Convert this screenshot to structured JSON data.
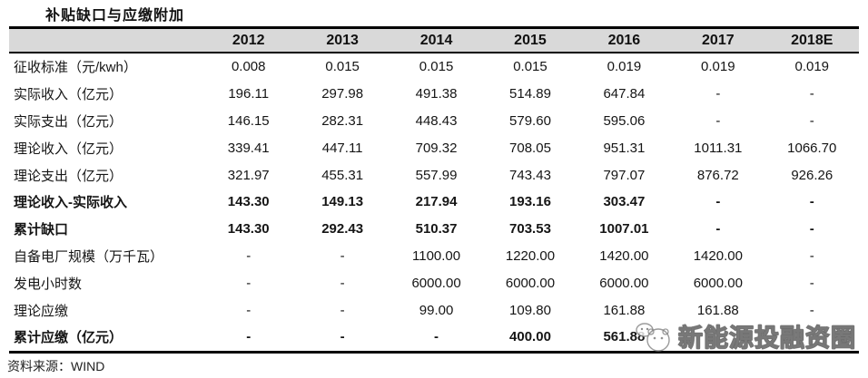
{
  "title": "补贴缺口与应缴附加",
  "source": "资料来源：WIND",
  "watermark": {
    "text": "新能源投融资圈",
    "logo": "panda-bubble-logo"
  },
  "colors": {
    "header_bg": "#d9d9d9",
    "border": "#000000",
    "text": "#151515",
    "watermark_outline": "#646464"
  },
  "chart_data": {
    "type": "table",
    "title": "补贴缺口与应缴附加",
    "columns": [
      "",
      "2012",
      "2013",
      "2014",
      "2015",
      "2016",
      "2017",
      "2018E"
    ],
    "rows": [
      {
        "label": "征收标准（元/kwh）",
        "bold": false,
        "values": [
          "0.008",
          "0.015",
          "0.015",
          "0.015",
          "0.019",
          "0.019",
          "0.019"
        ]
      },
      {
        "label": "实际收入（亿元）",
        "bold": false,
        "values": [
          "196.11",
          "297.98",
          "491.38",
          "514.89",
          "647.84",
          "-",
          "-"
        ]
      },
      {
        "label": "实际支出（亿元）",
        "bold": false,
        "values": [
          "146.15",
          "282.31",
          "448.43",
          "579.60",
          "595.06",
          "-",
          "-"
        ]
      },
      {
        "label": "理论收入（亿元）",
        "bold": false,
        "values": [
          "339.41",
          "447.11",
          "709.32",
          "708.05",
          "951.31",
          "1011.31",
          "1066.70"
        ]
      },
      {
        "label": "理论支出（亿元）",
        "bold": false,
        "values": [
          "321.97",
          "455.31",
          "557.99",
          "743.43",
          "797.07",
          "876.72",
          "926.26"
        ]
      },
      {
        "label": "理论收入-实际收入",
        "bold": true,
        "values": [
          "143.30",
          "149.13",
          "217.94",
          "193.16",
          "303.47",
          "-",
          "-"
        ]
      },
      {
        "label": "累计缺口",
        "bold": true,
        "values": [
          "143.30",
          "292.43",
          "510.37",
          "703.53",
          "1007.01",
          "-",
          "-"
        ]
      },
      {
        "label": "自备电厂规模（万千瓦）",
        "bold": false,
        "values": [
          "-",
          "-",
          "1100.00",
          "1220.00",
          "1420.00",
          "1420.00",
          "-"
        ]
      },
      {
        "label": "发电小时数",
        "bold": false,
        "values": [
          "-",
          "-",
          "6000.00",
          "6000.00",
          "6000.00",
          "6000.00",
          "-"
        ]
      },
      {
        "label": "理论应缴",
        "bold": false,
        "values": [
          "-",
          "-",
          "99.00",
          "109.80",
          "161.88",
          "161.88",
          "-"
        ]
      },
      {
        "label": "累计应缴（亿元）",
        "bold": true,
        "values": [
          "-",
          "-",
          "-",
          "400.00",
          "561.88",
          "",
          ""
        ]
      }
    ],
    "layout": {
      "header_row_shaded": true,
      "value_alignment": "center",
      "label_alignment": "left"
    }
  }
}
